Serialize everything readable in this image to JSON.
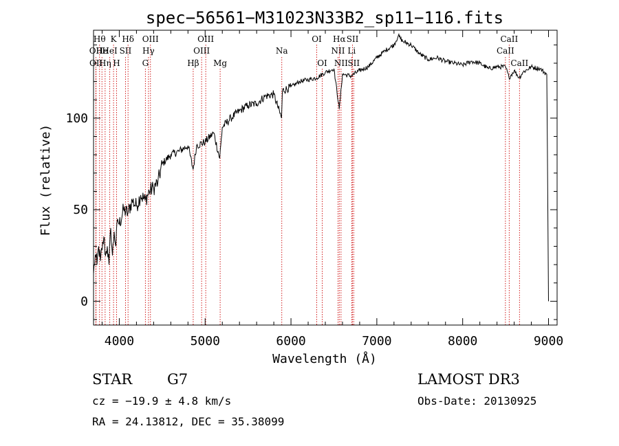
{
  "chart_data": {
    "type": "line",
    "title": "spec−56561−M31023N33B2_sp11−116.fits",
    "xlabel": "Wavelength (Å)",
    "ylabel": "Flux (relative)",
    "xlim": [
      3700,
      9100
    ],
    "ylim": [
      -13,
      148
    ],
    "x_ticks": [
      4000,
      5000,
      6000,
      7000,
      8000,
      9000
    ],
    "y_ticks": [
      0,
      50,
      100
    ],
    "series": [
      {
        "name": "spectrum",
        "x": [
          3700,
          3720,
          3740,
          3760,
          3780,
          3800,
          3820,
          3840,
          3860,
          3880,
          3900,
          3920,
          3940,
          3960,
          3980,
          4000,
          4050,
          4100,
          4150,
          4200,
          4250,
          4300,
          4350,
          4400,
          4450,
          4500,
          4600,
          4700,
          4800,
          4860,
          4900,
          5000,
          5100,
          5170,
          5200,
          5300,
          5400,
          5500,
          5600,
          5700,
          5800,
          5890,
          5900,
          6000,
          6100,
          6200,
          6300,
          6400,
          6500,
          6563,
          6600,
          6700,
          6800,
          6900,
          7000,
          7100,
          7200,
          7250,
          7300,
          7400,
          7500,
          7600,
          7700,
          7800,
          7900,
          8000,
          8100,
          8200,
          8300,
          8400,
          8500,
          8540,
          8600,
          8660,
          8700,
          8800,
          8900,
          8980,
          9000
        ],
        "y": [
          15,
          25,
          20,
          30,
          22,
          28,
          35,
          25,
          30,
          20,
          40,
          25,
          38,
          30,
          45,
          42,
          50,
          48,
          55,
          52,
          58,
          55,
          60,
          62,
          65,
          75,
          80,
          82,
          85,
          72,
          85,
          87,
          92,
          78,
          95,
          100,
          104,
          107,
          108,
          112,
          113,
          100,
          115,
          117,
          120,
          121,
          122,
          125,
          127,
          105,
          124,
          123,
          126,
          128,
          133,
          137,
          140,
          145,
          142,
          140,
          135,
          132,
          133,
          131,
          130,
          129,
          131,
          130,
          127,
          128,
          128,
          122,
          126,
          122,
          125,
          128,
          127,
          124,
          0
        ]
      }
    ],
    "line_markers": [
      {
        "wl": 3727,
        "label": "OII",
        "row": 2
      },
      {
        "wl": 3729,
        "label": "OII",
        "row": 3
      },
      {
        "wl": 3770,
        "label": "Hθ",
        "row": 1
      },
      {
        "wl": 3798,
        "label": "He",
        "row": 2
      },
      {
        "wl": 3835,
        "label": "Hη",
        "row": 3
      },
      {
        "wl": 3889,
        "label": "HeI",
        "row": 2
      },
      {
        "wl": 3933,
        "label": "K",
        "row": 1
      },
      {
        "wl": 3968,
        "label": "H",
        "row": 3
      },
      {
        "wl": 4072,
        "label": "SII",
        "row": 2
      },
      {
        "wl": 4102,
        "label": "Hδ",
        "row": 1
      },
      {
        "wl": 4304,
        "label": "G",
        "row": 3
      },
      {
        "wl": 4340,
        "label": "Hγ",
        "row": 2
      },
      {
        "wl": 4363,
        "label": "OIII",
        "row": 1
      },
      {
        "wl": 4861,
        "label": "Hβ",
        "row": 3
      },
      {
        "wl": 4959,
        "label": "OIII",
        "row": 2
      },
      {
        "wl": 5007,
        "label": "OIII",
        "row": 1
      },
      {
        "wl": 5175,
        "label": "Mg",
        "row": 3
      },
      {
        "wl": 5893,
        "label": "Na",
        "row": 2
      },
      {
        "wl": 6300,
        "label": "OI",
        "row": 1
      },
      {
        "wl": 6364,
        "label": "OI",
        "row": 3
      },
      {
        "wl": 6548,
        "label": "NII",
        "row": 2
      },
      {
        "wl": 6563,
        "label": "Hα",
        "row": 1
      },
      {
        "wl": 6583,
        "label": "NII",
        "row": 3
      },
      {
        "wl": 6707,
        "label": "Li",
        "row": 2
      },
      {
        "wl": 6717,
        "label": "SII",
        "row": 1
      },
      {
        "wl": 6731,
        "label": "SII",
        "row": 3
      },
      {
        "wl": 8498,
        "label": "CaII",
        "row": 2
      },
      {
        "wl": 8542,
        "label": "CaII",
        "row": 1
      },
      {
        "wl": 8662,
        "label": "CaII",
        "row": 3
      }
    ]
  },
  "info": {
    "object_class": "STAR",
    "subclass": "G7",
    "cz": "cz = −19.9 ± 4.8 km/s",
    "coords": "RA =  24.13812, DEC =  35.38099",
    "survey": "LAMOST DR3",
    "obs_date": "Obs-Date: 20130925"
  }
}
